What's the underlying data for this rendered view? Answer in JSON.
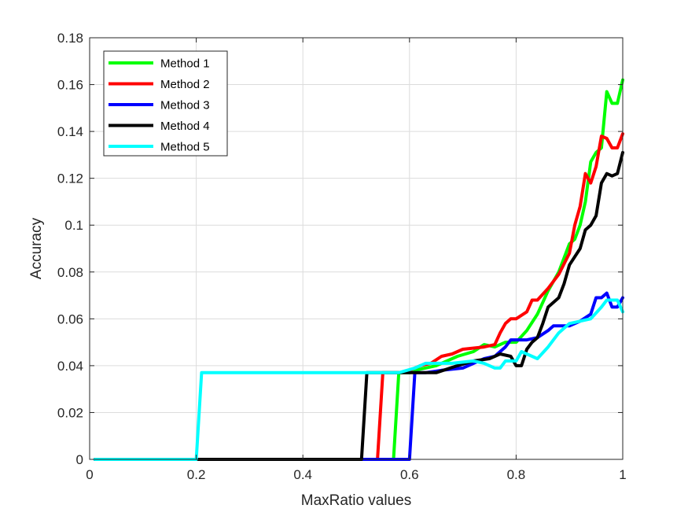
{
  "chart_data": {
    "type": "line",
    "xlabel": "MaxRatio values",
    "ylabel": "Accuracy",
    "xlim": [
      0,
      1
    ],
    "ylim": [
      0,
      0.18
    ],
    "xticks": [
      0,
      0.2,
      0.4,
      0.6,
      0.8,
      1
    ],
    "xtick_labels": [
      "0",
      "0.2",
      "0.4",
      "0.6",
      "0.8",
      "1"
    ],
    "yticks": [
      0,
      0.02,
      0.04,
      0.06,
      0.08,
      0.1,
      0.12,
      0.14,
      0.16,
      0.18
    ],
    "ytick_labels": [
      "0",
      "0.02",
      "0.04",
      "0.06",
      "0.08",
      "0.1",
      "0.12",
      "0.14",
      "0.16",
      "0.18"
    ],
    "grid": true,
    "legend_position": "top-left",
    "series": [
      {
        "name": "Method 1",
        "color": "#00ff00",
        "points": [
          [
            0.01,
            0
          ],
          [
            0.57,
            0
          ],
          [
            0.58,
            0.037
          ],
          [
            0.6,
            0.037
          ],
          [
            0.61,
            0.038
          ],
          [
            0.65,
            0.04
          ],
          [
            0.69,
            0.044
          ],
          [
            0.72,
            0.046
          ],
          [
            0.74,
            0.049
          ],
          [
            0.76,
            0.048
          ],
          [
            0.78,
            0.05
          ],
          [
            0.8,
            0.05
          ],
          [
            0.82,
            0.055
          ],
          [
            0.84,
            0.062
          ],
          [
            0.86,
            0.072
          ],
          [
            0.88,
            0.08
          ],
          [
            0.9,
            0.092
          ],
          [
            0.91,
            0.094
          ],
          [
            0.92,
            0.1
          ],
          [
            0.93,
            0.11
          ],
          [
            0.94,
            0.127
          ],
          [
            0.95,
            0.131
          ],
          [
            0.96,
            0.133
          ],
          [
            0.97,
            0.157
          ],
          [
            0.98,
            0.152
          ],
          [
            0.99,
            0.152
          ],
          [
            1.0,
            0.162
          ]
        ]
      },
      {
        "name": "Method 2",
        "color": "#ff0000",
        "points": [
          [
            0.01,
            0
          ],
          [
            0.54,
            0
          ],
          [
            0.55,
            0.037
          ],
          [
            0.58,
            0.037
          ],
          [
            0.6,
            0.038
          ],
          [
            0.62,
            0.04
          ],
          [
            0.64,
            0.041
          ],
          [
            0.66,
            0.044
          ],
          [
            0.68,
            0.045
          ],
          [
            0.7,
            0.047
          ],
          [
            0.74,
            0.048
          ],
          [
            0.76,
            0.049
          ],
          [
            0.77,
            0.054
          ],
          [
            0.78,
            0.058
          ],
          [
            0.79,
            0.06
          ],
          [
            0.8,
            0.06
          ],
          [
            0.82,
            0.063
          ],
          [
            0.83,
            0.068
          ],
          [
            0.84,
            0.068
          ],
          [
            0.86,
            0.073
          ],
          [
            0.88,
            0.079
          ],
          [
            0.9,
            0.088
          ],
          [
            0.91,
            0.1
          ],
          [
            0.92,
            0.108
          ],
          [
            0.93,
            0.122
          ],
          [
            0.94,
            0.118
          ],
          [
            0.95,
            0.125
          ],
          [
            0.96,
            0.138
          ],
          [
            0.97,
            0.137
          ],
          [
            0.98,
            0.133
          ],
          [
            0.99,
            0.133
          ],
          [
            1.0,
            0.139
          ]
        ]
      },
      {
        "name": "Method 3",
        "color": "#0000ff",
        "points": [
          [
            0.01,
            0
          ],
          [
            0.6,
            0
          ],
          [
            0.61,
            0.037
          ],
          [
            0.63,
            0.037
          ],
          [
            0.66,
            0.038
          ],
          [
            0.7,
            0.039
          ],
          [
            0.74,
            0.043
          ],
          [
            0.76,
            0.044
          ],
          [
            0.78,
            0.048
          ],
          [
            0.79,
            0.051
          ],
          [
            0.82,
            0.051
          ],
          [
            0.84,
            0.052
          ],
          [
            0.86,
            0.055
          ],
          [
            0.87,
            0.057
          ],
          [
            0.9,
            0.057
          ],
          [
            0.92,
            0.059
          ],
          [
            0.94,
            0.062
          ],
          [
            0.95,
            0.069
          ],
          [
            0.96,
            0.069
          ],
          [
            0.97,
            0.071
          ],
          [
            0.98,
            0.065
          ],
          [
            0.99,
            0.065
          ],
          [
            1.0,
            0.069
          ]
        ]
      },
      {
        "name": "Method 4",
        "color": "#000000",
        "points": [
          [
            0.01,
            0
          ],
          [
            0.51,
            0
          ],
          [
            0.52,
            0.037
          ],
          [
            0.58,
            0.037
          ],
          [
            0.6,
            0.037
          ],
          [
            0.62,
            0.037
          ],
          [
            0.65,
            0.037
          ],
          [
            0.69,
            0.04
          ],
          [
            0.72,
            0.042
          ],
          [
            0.75,
            0.043
          ],
          [
            0.77,
            0.045
          ],
          [
            0.79,
            0.044
          ],
          [
            0.8,
            0.04
          ],
          [
            0.81,
            0.04
          ],
          [
            0.82,
            0.047
          ],
          [
            0.83,
            0.05
          ],
          [
            0.84,
            0.052
          ],
          [
            0.85,
            0.058
          ],
          [
            0.86,
            0.065
          ],
          [
            0.88,
            0.069
          ],
          [
            0.89,
            0.075
          ],
          [
            0.9,
            0.083
          ],
          [
            0.92,
            0.09
          ],
          [
            0.93,
            0.098
          ],
          [
            0.94,
            0.1
          ],
          [
            0.95,
            0.104
          ],
          [
            0.96,
            0.118
          ],
          [
            0.97,
            0.122
          ],
          [
            0.98,
            0.121
          ],
          [
            0.99,
            0.122
          ],
          [
            1.0,
            0.131
          ]
        ]
      },
      {
        "name": "Method 5",
        "color": "#00ffff",
        "points": [
          [
            0.01,
            0
          ],
          [
            0.2,
            0
          ],
          [
            0.21,
            0.037
          ],
          [
            0.58,
            0.037
          ],
          [
            0.61,
            0.039
          ],
          [
            0.63,
            0.041
          ],
          [
            0.68,
            0.041
          ],
          [
            0.72,
            0.042
          ],
          [
            0.74,
            0.041
          ],
          [
            0.76,
            0.039
          ],
          [
            0.77,
            0.039
          ],
          [
            0.78,
            0.042
          ],
          [
            0.8,
            0.042
          ],
          [
            0.81,
            0.046
          ],
          [
            0.83,
            0.044
          ],
          [
            0.84,
            0.043
          ],
          [
            0.86,
            0.048
          ],
          [
            0.88,
            0.054
          ],
          [
            0.9,
            0.058
          ],
          [
            0.92,
            0.059
          ],
          [
            0.94,
            0.06
          ],
          [
            0.96,
            0.065
          ],
          [
            0.97,
            0.068
          ],
          [
            0.99,
            0.068
          ],
          [
            1.0,
            0.063
          ]
        ]
      }
    ]
  }
}
